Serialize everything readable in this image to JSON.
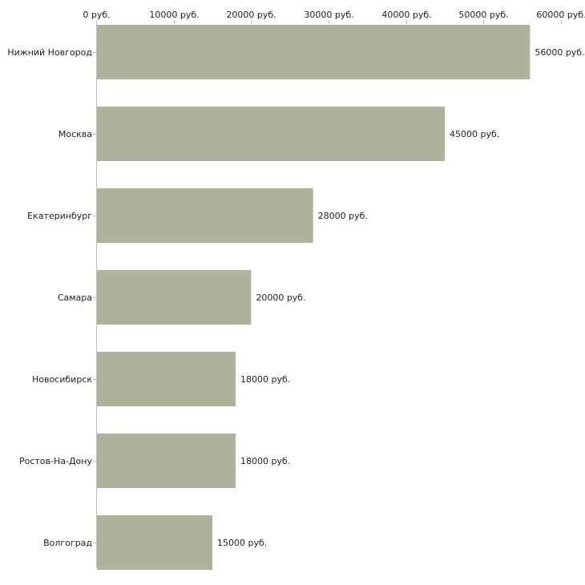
{
  "chart_data": {
    "type": "bar",
    "orientation": "horizontal",
    "title": "",
    "xlabel": "",
    "ylabel": "",
    "xlim": [
      0,
      60000
    ],
    "grid": false,
    "bar_color": "#adb29a",
    "unit_suffix": " руб.",
    "categories": [
      "Нижний Новгород",
      "Москва",
      "Екатеринбург",
      "Самара",
      "Новосибирск",
      "Ростов-На-Дону",
      "Волгоград"
    ],
    "values": [
      56000,
      45000,
      28000,
      20000,
      18000,
      18000,
      15000
    ],
    "value_labels": [
      "56000 руб.",
      "45000 руб.",
      "28000 руб.",
      "20000 руб.",
      "18000 руб.",
      "18000 руб.",
      "15000 руб."
    ],
    "ticks": [
      0,
      10000,
      20000,
      30000,
      40000,
      50000,
      60000
    ],
    "tick_labels": [
      "0 руб.",
      "10000 руб.",
      "20000 руб.",
      "30000 руб.",
      "40000 руб.",
      "50000 руб.",
      "60000 руб."
    ]
  }
}
